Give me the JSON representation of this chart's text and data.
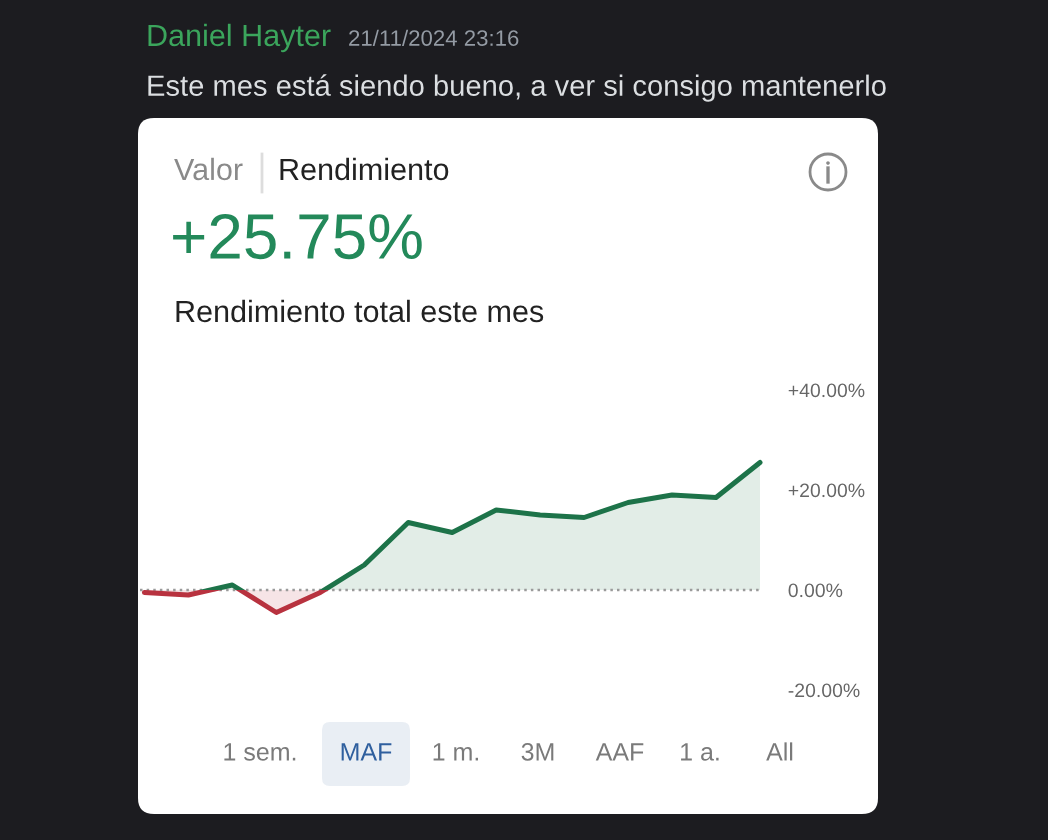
{
  "chart_data": {
    "type": "area",
    "title": "+25.75%",
    "subtitle": "Rendimiento total este mes",
    "annotations": [
      "Daniel Hayter",
      "21/11/2024 23:16",
      "Este mes está siendo bueno, a ver si consigo mantenerlo",
      "Valor",
      "Rendimiento",
      "1 sem.",
      "MAF",
      "1 m.",
      "3M",
      "AAF",
      "1 a.",
      "All"
    ],
    "categories": [
      null,
      null,
      null,
      null,
      null,
      null,
      null,
      null,
      null,
      null,
      null,
      null,
      null,
      null,
      null
    ],
    "series": [
      {
        "values": [
          -0.5,
          -1,
          1,
          -4.5,
          -0.5,
          5,
          13.5,
          11.5,
          16,
          15,
          14.5,
          17.5,
          19,
          18.5,
          25.5
        ],
        "colors": [
          "#b8323f",
          "#b8323f",
          "#1d7349",
          "#b8323f",
          "#b8323f",
          "#1d7349",
          "#1d7349",
          "#1d7349",
          "#1d7349",
          "#1d7349",
          "#1d7349",
          "#1d7349",
          "#1d7349",
          "#1d7349",
          "#1d7349"
        ]
      }
    ],
    "ylim": [
      -20,
      40
    ],
    "yticks": [
      {
        "value": -20,
        "label": "-20.00%"
      },
      {
        "value": 0,
        "label": "0.00%"
      },
      {
        "value": 20,
        "label": "+20.00%"
      },
      {
        "value": 40,
        "label": "+40.00%"
      }
    ],
    "tick_labels": "y",
    "grid": false,
    "ref_lines": [
      {
        "axis": "y",
        "value": 0,
        "color": "#9a9a9a",
        "line_style": "dotted"
      }
    ]
  }
}
